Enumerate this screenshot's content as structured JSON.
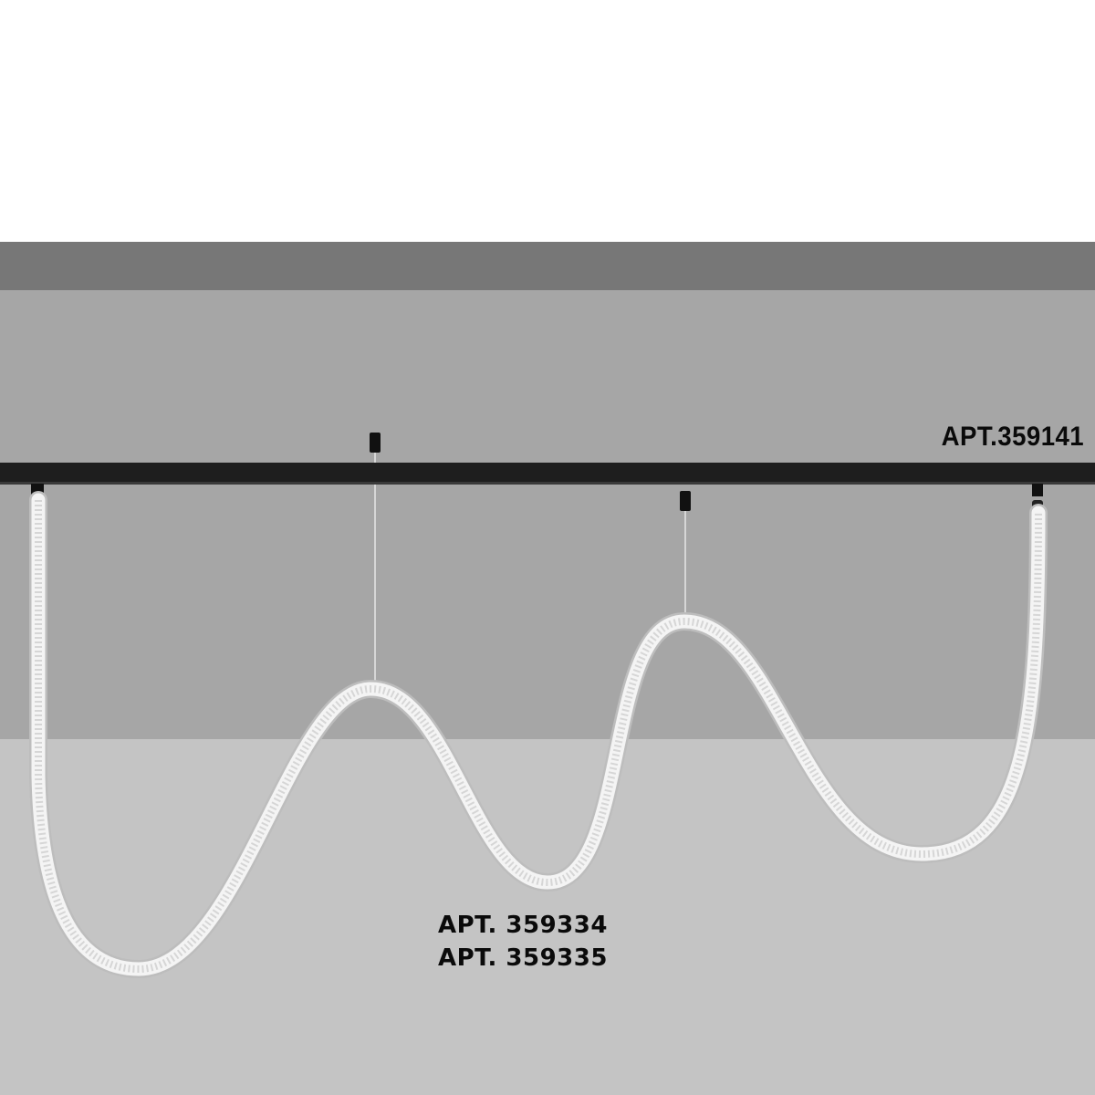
{
  "labels": {
    "track": "APT.359141",
    "pendant_1": "APT. 359334",
    "pendant_2": "APT. 359335"
  },
  "colors": {
    "ceiling_top": "#777777",
    "wall": "#a6a6a6",
    "floor": "#c4c4c4",
    "track": "#1e1e1e",
    "rope": "#f4f4f4"
  }
}
